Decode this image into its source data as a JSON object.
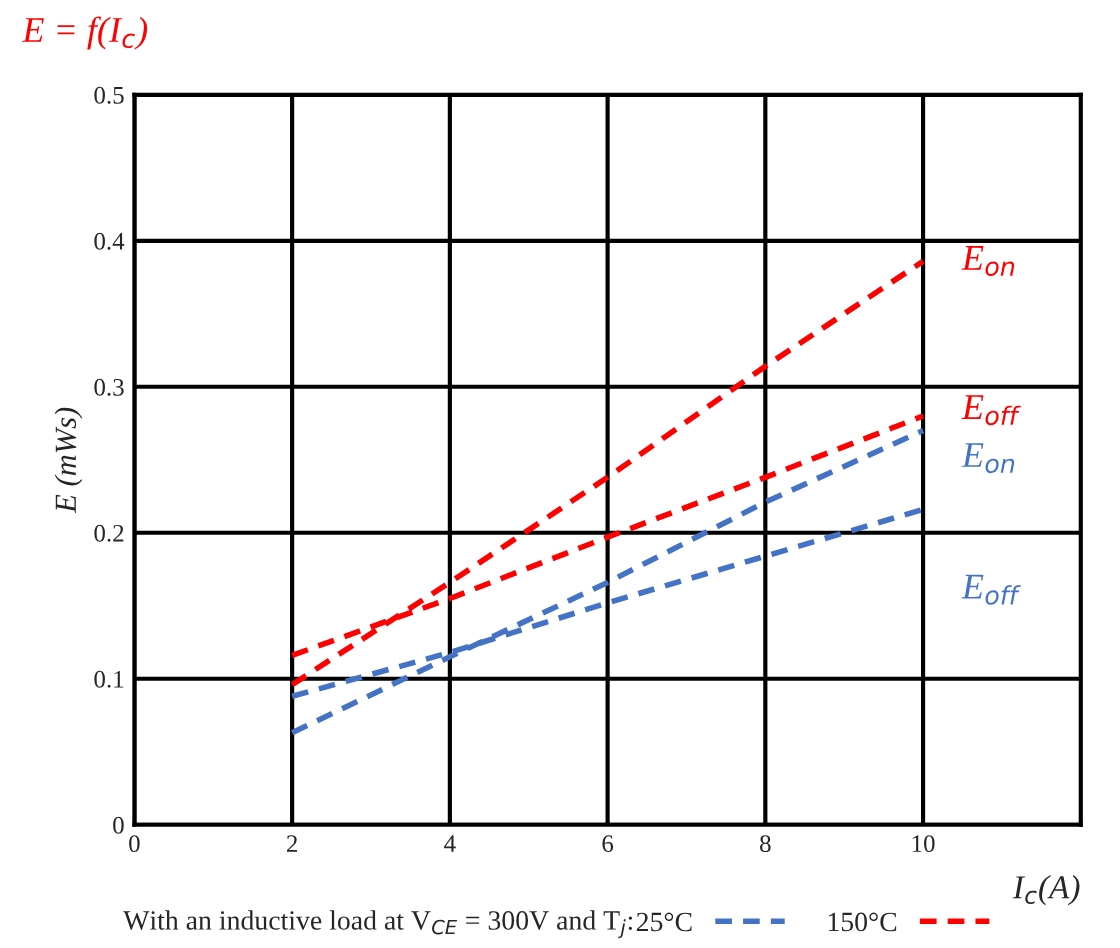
{
  "chart_data": {
    "type": "line",
    "title": "E = f(I$_{c}$)",
    "xlabel": "I$_{c}$(A)",
    "ylabel": "E (mWs)",
    "x": [
      2,
      4,
      6,
      8,
      10
    ],
    "series": [
      {
        "name": "150°C",
        "color": "#ff0000",
        "values": [
          0.096,
          0.166,
          0.238,
          0.314,
          0.386
        ]
      },
      {
        "color": "#ff0000",
        "values": [
          0.116,
          0.155,
          0.197,
          0.238,
          0.28
        ]
      },
      {
        "name": "25°C",
        "color": "#4472c4",
        "values": [
          0.063,
          0.115,
          0.166,
          0.221,
          0.27
        ]
      },
      {
        "color": "#4472c4",
        "values": [
          0.088,
          0.118,
          0.152,
          0.184,
          0.216
        ]
      }
    ],
    "xlim": [
      0,
      12
    ],
    "ylim": [
      0,
      0.5
    ],
    "xticks": [
      0,
      2,
      4,
      6,
      8,
      10
    ],
    "yticks": [
      0,
      0.1,
      0.2,
      0.3,
      0.4,
      0.5
    ],
    "grid": true,
    "line_style": "dashed",
    "marker": "none",
    "legend": "bottom",
    "legend_title": "With an inductive load at V$_{CE}$ = 300V and T$_{j}$:",
    "annotations": [
      "E$_{on}$",
      "E$_{off}$",
      "E$_{on}$",
      "E$_{off}$"
    ]
  }
}
